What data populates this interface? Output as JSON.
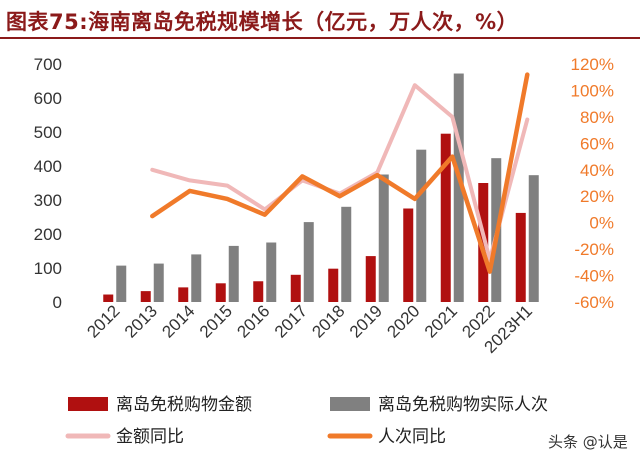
{
  "title": "图表75:海南离岛免税规模增长（亿元，万人次，%）",
  "watermark": "头条 @认是",
  "colors": {
    "title": "#8b1a1a",
    "sales_bar": "#b01010",
    "visitors_bar": "#808080",
    "sales_yoy": "#f0b8b8",
    "visitors_yoy": "#f07a2a",
    "right_axis": "#f07a2a",
    "left_axis": "#333333"
  },
  "chart_data": {
    "type": "bar+line",
    "categories": [
      "2012",
      "2013",
      "2014",
      "2015",
      "2016",
      "2017",
      "2018",
      "2019",
      "2020",
      "2021",
      "2022",
      "2023H1"
    ],
    "left_axis": {
      "min": 0,
      "max": 700,
      "ticks": [
        0,
        100,
        200,
        300,
        400,
        500,
        600,
        700
      ],
      "tick_labels": [
        "0",
        "100",
        "200",
        "300",
        "400",
        "500",
        "600",
        "700"
      ]
    },
    "right_axis": {
      "min": -60,
      "max": 120,
      "ticks": [
        -60,
        -40,
        -20,
        0,
        20,
        40,
        60,
        80,
        100,
        120
      ],
      "tick_labels": [
        "-60%",
        "-40%",
        "-20%",
        "0%",
        "20%",
        "40%",
        "60%",
        "80%",
        "100%",
        "120%"
      ]
    },
    "series": [
      {
        "name": "离岛免税购物金额",
        "type": "bar",
        "axis": "left",
        "values": [
          22,
          32,
          43,
          55,
          61,
          80,
          98,
          135,
          275,
          495,
          350,
          262
        ]
      },
      {
        "name": "离岛免税购物实际人次",
        "type": "bar",
        "axis": "left",
        "values": [
          107,
          113,
          140,
          165,
          175,
          235,
          280,
          375,
          448,
          672,
          423,
          373
        ]
      },
      {
        "name": "金额同比",
        "type": "line",
        "axis": "right",
        "values": [
          null,
          40,
          32,
          28,
          10,
          32,
          22,
          38,
          104,
          80,
          -28,
          78
        ]
      },
      {
        "name": "人次同比",
        "type": "line",
        "axis": "right",
        "values": [
          null,
          5,
          24,
          18,
          6,
          35,
          20,
          36,
          18,
          50,
          -37,
          112
        ]
      }
    ],
    "legend": {
      "placement": "bottom"
    },
    "grid": false
  }
}
